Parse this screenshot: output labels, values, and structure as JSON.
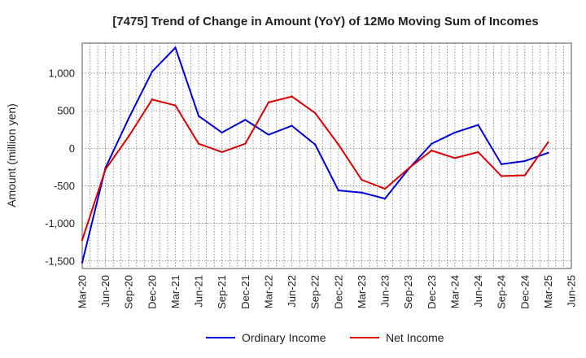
{
  "chart_data": {
    "type": "line",
    "title": "[7475]  Trend of Change in Amount (YoY) of 12Mo Moving Sum of Incomes",
    "ylabel": "Amount (million yen)",
    "xlabel": "",
    "ylim": [
      -1600,
      1400
    ],
    "yticks": [
      -1500,
      -1000,
      -500,
      0,
      500,
      1000
    ],
    "ytick_labels": [
      "-1,500",
      "-1,000",
      "-500",
      "0",
      "500",
      "1,000"
    ],
    "x": [
      "Mar-20",
      "Jun-20",
      "Sep-20",
      "Dec-20",
      "Mar-21",
      "Jun-21",
      "Sep-21",
      "Dec-21",
      "Mar-22",
      "Jun-22",
      "Sep-22",
      "Dec-22",
      "Mar-23",
      "Jun-23",
      "Sep-23",
      "Dec-23",
      "Mar-24",
      "Jun-24",
      "Sep-24",
      "Dec-24",
      "Mar-25",
      "Jun-25"
    ],
    "grid": true,
    "legend_position": "bottom",
    "series": [
      {
        "name": "Ordinary Income",
        "color": "#0000dd",
        "values": [
          -1520,
          -260,
          400,
          1020,
          1340,
          430,
          210,
          380,
          180,
          300,
          50,
          -560,
          -590,
          -670,
          -280,
          60,
          210,
          310,
          -210,
          -170,
          -60,
          null
        ]
      },
      {
        "name": "Net Income",
        "color": "#dd0000",
        "values": [
          -1220,
          -280,
          160,
          650,
          570,
          60,
          -50,
          60,
          610,
          690,
          470,
          50,
          -420,
          -540,
          -270,
          -30,
          -130,
          -50,
          -370,
          -360,
          80,
          null
        ]
      }
    ]
  }
}
